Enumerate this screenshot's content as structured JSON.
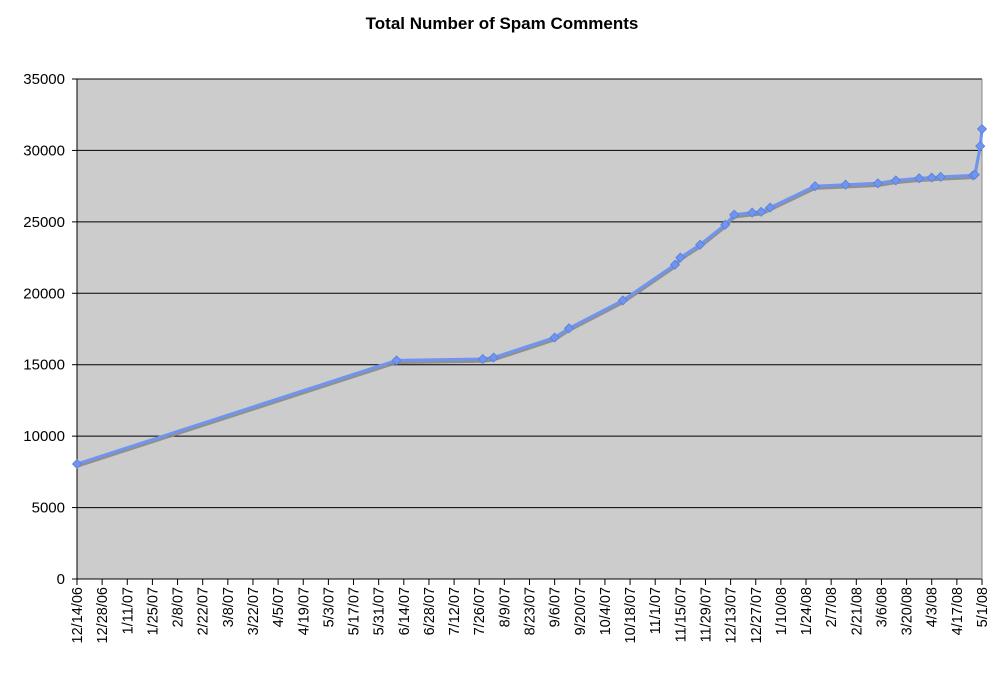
{
  "chart_data": {
    "type": "line",
    "title": "Total Number of Spam Comments",
    "xlabel": "",
    "ylabel": "",
    "ylim": [
      0,
      35000
    ],
    "y_ticks": [
      "0",
      "5000",
      "10000",
      "15000",
      "20000",
      "25000",
      "30000",
      "35000"
    ],
    "x_tick_labels": [
      "12/14/06",
      "12/28/06",
      "1/11/07",
      "1/25/07",
      "2/8/07",
      "2/22/07",
      "3/8/07",
      "3/22/07",
      "4/5/07",
      "4/19/07",
      "5/3/07",
      "5/17/07",
      "5/31/07",
      "6/14/07",
      "6/28/07",
      "7/12/07",
      "7/26/07",
      "8/9/07",
      "8/23/07",
      "9/6/07",
      "9/20/07",
      "10/4/07",
      "10/18/07",
      "11/1/07",
      "11/15/07",
      "11/29/07",
      "12/13/07",
      "12/27/07",
      "1/10/08",
      "1/24/08",
      "2/7/08",
      "2/21/08",
      "3/6/08",
      "3/20/08",
      "4/3/08",
      "4/17/08",
      "5/1/08"
    ],
    "xlim": [
      "12/14/06",
      "5/1/08"
    ],
    "background": "#cccccc",
    "grid": true,
    "legend": "none",
    "series": [
      {
        "color": "#6f95f0",
        "points": [
          {
            "x": "12/14/06",
            "y": 8050
          },
          {
            "x": "6/10/07",
            "y": 15300
          },
          {
            "x": "7/28/07",
            "y": 15400
          },
          {
            "x": "8/3/07",
            "y": 15500
          },
          {
            "x": "9/6/07",
            "y": 16900
          },
          {
            "x": "9/14/07",
            "y": 17550
          },
          {
            "x": "10/14/07",
            "y": 19500
          },
          {
            "x": "11/12/07",
            "y": 22000
          },
          {
            "x": "11/15/07",
            "y": 22500
          },
          {
            "x": "11/26/07",
            "y": 23400
          },
          {
            "x": "12/10/07",
            "y": 24800
          },
          {
            "x": "12/15/07",
            "y": 25500
          },
          {
            "x": "12/25/07",
            "y": 25650
          },
          {
            "x": "12/30/07",
            "y": 25700
          },
          {
            "x": "1/4/08",
            "y": 26000
          },
          {
            "x": "1/29/08",
            "y": 27500
          },
          {
            "x": "2/15/08",
            "y": 27600
          },
          {
            "x": "3/4/08",
            "y": 27700
          },
          {
            "x": "3/14/08",
            "y": 27900
          },
          {
            "x": "3/27/08",
            "y": 28050
          },
          {
            "x": "4/3/08",
            "y": 28100
          },
          {
            "x": "4/8/08",
            "y": 28150
          },
          {
            "x": "4/26/08",
            "y": 28250
          },
          {
            "x": "4/27/08",
            "y": 28300
          },
          {
            "x": "4/30/08",
            "y": 30300
          },
          {
            "x": "5/1/08",
            "y": 31500
          }
        ]
      }
    ]
  }
}
